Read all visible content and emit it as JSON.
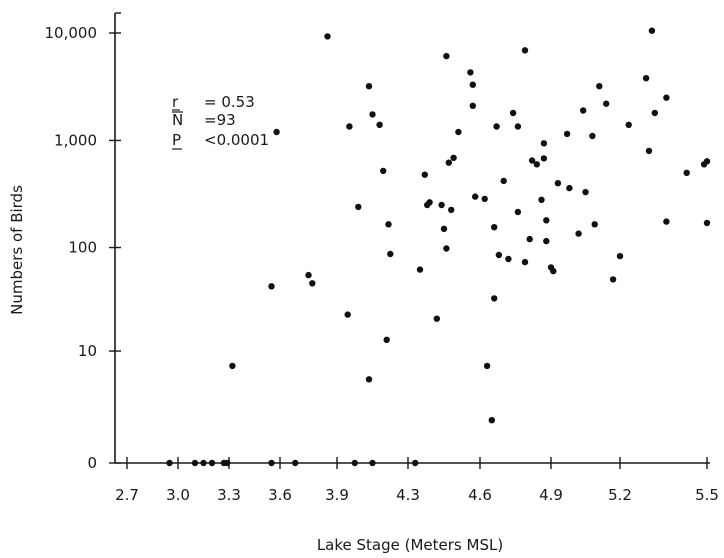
{
  "chart_data": {
    "type": "scatter",
    "xlabel": "Lake Stage (Meters MSL)",
    "ylabel": "Numbers of Birds",
    "x_ticks": [
      "2.7",
      "3.0",
      "3.3",
      "3.6",
      "3.9",
      "4.3",
      "4.6",
      "4.9",
      "5.2",
      "5.5"
    ],
    "y_ticks": [
      "0",
      "10",
      "100",
      "1,000",
      "10,000"
    ],
    "xlim": [
      2.7,
      5.5
    ],
    "yscale": "log(1+y)",
    "ylim": [
      0,
      10000
    ],
    "grid": false,
    "stats": [
      {
        "symbol": "r",
        "text": "= 0.53"
      },
      {
        "symbol": "N",
        "text": "=93"
      },
      {
        "symbol": "P",
        "text": "<0.0001"
      }
    ],
    "points": [
      {
        "x": 2.95,
        "y": 0
      },
      {
        "x": 3.1,
        "y": 0
      },
      {
        "x": 3.15,
        "y": 0
      },
      {
        "x": 3.2,
        "y": 0
      },
      {
        "x": 3.27,
        "y": 0
      },
      {
        "x": 3.29,
        "y": 0
      },
      {
        "x": 3.55,
        "y": 0
      },
      {
        "x": 3.68,
        "y": 0
      },
      {
        "x": 4.0,
        "y": 0
      },
      {
        "x": 4.1,
        "y": 0
      },
      {
        "x": 4.33,
        "y": 0
      },
      {
        "x": 3.32,
        "y": 7
      },
      {
        "x": 3.55,
        "y": 43
      },
      {
        "x": 3.58,
        "y": 1200
      },
      {
        "x": 3.75,
        "y": 55
      },
      {
        "x": 3.77,
        "y": 46
      },
      {
        "x": 3.85,
        "y": 9300
      },
      {
        "x": 3.96,
        "y": 23
      },
      {
        "x": 3.97,
        "y": 1350
      },
      {
        "x": 4.02,
        "y": 240
      },
      {
        "x": 4.08,
        "y": 5
      },
      {
        "x": 4.08,
        "y": 3200
      },
      {
        "x": 4.1,
        "y": 1750
      },
      {
        "x": 4.14,
        "y": 1400
      },
      {
        "x": 4.16,
        "y": 520
      },
      {
        "x": 4.18,
        "y": 13
      },
      {
        "x": 4.19,
        "y": 165
      },
      {
        "x": 4.2,
        "y": 87
      },
      {
        "x": 4.35,
        "y": 62
      },
      {
        "x": 4.37,
        "y": 480
      },
      {
        "x": 4.38,
        "y": 250
      },
      {
        "x": 4.39,
        "y": 265
      },
      {
        "x": 4.42,
        "y": 21
      },
      {
        "x": 4.44,
        "y": 250
      },
      {
        "x": 4.45,
        "y": 150
      },
      {
        "x": 4.46,
        "y": 98
      },
      {
        "x": 4.46,
        "y": 6100
      },
      {
        "x": 4.47,
        "y": 620
      },
      {
        "x": 4.48,
        "y": 225
      },
      {
        "x": 4.49,
        "y": 690
      },
      {
        "x": 4.51,
        "y": 1200
      },
      {
        "x": 4.56,
        "y": 4300
      },
      {
        "x": 4.57,
        "y": 3300
      },
      {
        "x": 4.57,
        "y": 2100
      },
      {
        "x": 4.58,
        "y": 300
      },
      {
        "x": 4.62,
        "y": 285
      },
      {
        "x": 4.63,
        "y": 7
      },
      {
        "x": 4.65,
        "y": 1.5
      },
      {
        "x": 4.66,
        "y": 33
      },
      {
        "x": 4.66,
        "y": 155
      },
      {
        "x": 4.67,
        "y": 1350
      },
      {
        "x": 4.68,
        "y": 85
      },
      {
        "x": 4.7,
        "y": 420
      },
      {
        "x": 4.72,
        "y": 78
      },
      {
        "x": 4.74,
        "y": 1800
      },
      {
        "x": 4.76,
        "y": 1350
      },
      {
        "x": 4.76,
        "y": 215
      },
      {
        "x": 4.79,
        "y": 73
      },
      {
        "x": 4.79,
        "y": 6900
      },
      {
        "x": 4.81,
        "y": 120
      },
      {
        "x": 4.82,
        "y": 650
      },
      {
        "x": 4.84,
        "y": 600
      },
      {
        "x": 4.86,
        "y": 280
      },
      {
        "x": 4.87,
        "y": 940
      },
      {
        "x": 4.87,
        "y": 680
      },
      {
        "x": 4.88,
        "y": 180
      },
      {
        "x": 4.88,
        "y": 115
      },
      {
        "x": 4.9,
        "y": 65
      },
      {
        "x": 4.91,
        "y": 60
      },
      {
        "x": 4.93,
        "y": 400
      },
      {
        "x": 4.97,
        "y": 1150
      },
      {
        "x": 4.98,
        "y": 360
      },
      {
        "x": 5.02,
        "y": 135
      },
      {
        "x": 5.04,
        "y": 1900
      },
      {
        "x": 5.05,
        "y": 330
      },
      {
        "x": 5.08,
        "y": 1100
      },
      {
        "x": 5.09,
        "y": 165
      },
      {
        "x": 5.11,
        "y": 3200
      },
      {
        "x": 5.14,
        "y": 2200
      },
      {
        "x": 5.17,
        "y": 50
      },
      {
        "x": 5.2,
        "y": 83
      },
      {
        "x": 5.23,
        "y": 1400
      },
      {
        "x": 5.29,
        "y": 3800
      },
      {
        "x": 5.3,
        "y": 800
      },
      {
        "x": 5.31,
        "y": 10500
      },
      {
        "x": 5.32,
        "y": 1800
      },
      {
        "x": 5.36,
        "y": 2500
      },
      {
        "x": 5.36,
        "y": 175
      },
      {
        "x": 5.43,
        "y": 500
      },
      {
        "x": 5.49,
        "y": 600
      },
      {
        "x": 5.51,
        "y": 640
      },
      {
        "x": 5.51,
        "y": 170
      }
    ]
  }
}
